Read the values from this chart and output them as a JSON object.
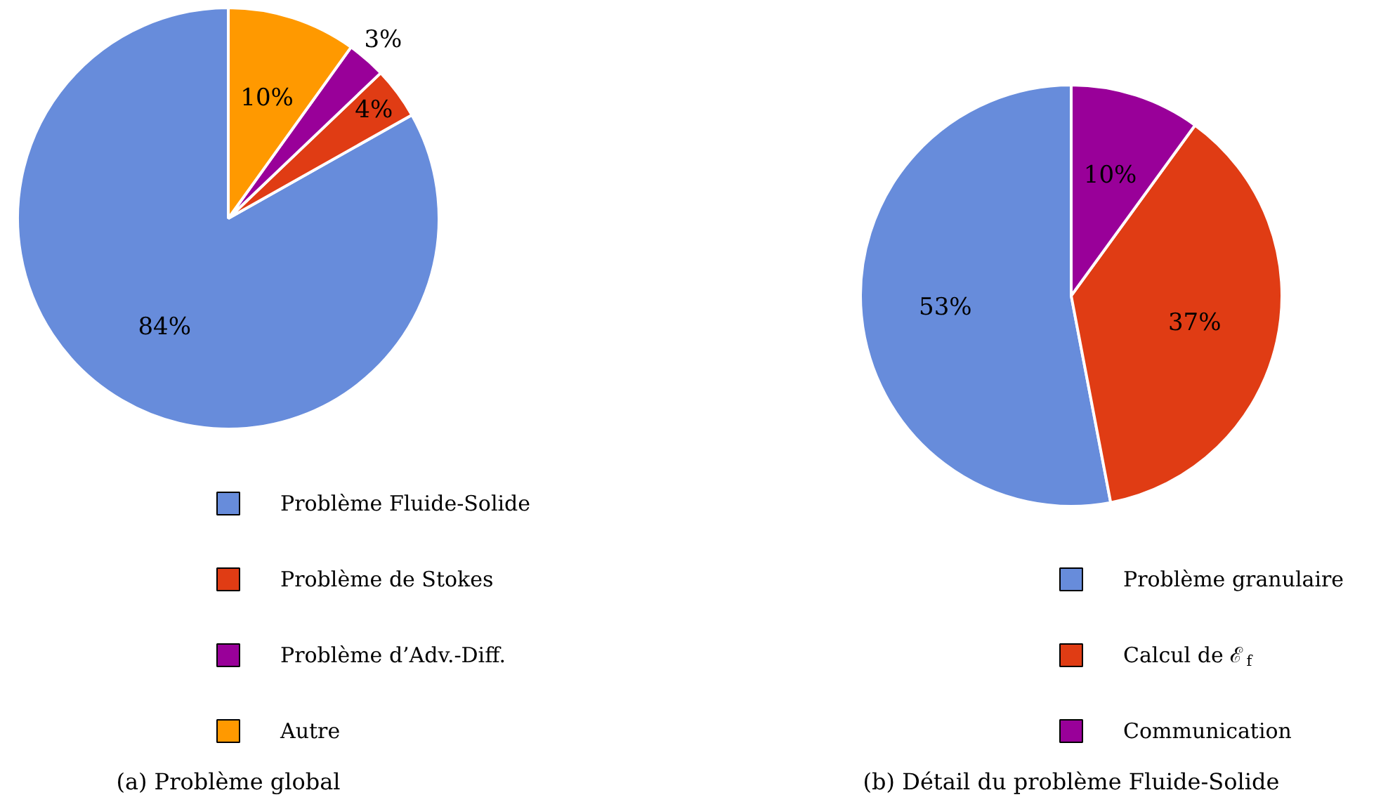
{
  "chart_data": [
    {
      "type": "pie",
      "title": "(a) Problème global",
      "categories": [
        "Problème Fluide-Solide",
        "Problème de Stokes",
        "Problème d’Adv.-Diff.",
        "Autre"
      ],
      "values": [
        84,
        4,
        3,
        10
      ],
      "colors": [
        "#678cdb",
        "#e03c14",
        "#990099",
        "#ff9900"
      ],
      "value_labels": [
        "84%",
        "4%",
        "3%",
        "10%"
      ],
      "legend": "bottom"
    },
    {
      "type": "pie",
      "title": "(b) Détail du problème Fluide-Solide",
      "categories": [
        "Problème granulaire",
        "Calcul de ℰ$_{f}$",
        "Communication"
      ],
      "values": [
        53,
        37,
        10
      ],
      "colors": [
        "#678cdb",
        "#e03c14",
        "#990099"
      ],
      "value_labels": [
        "53%",
        "37%",
        "10%"
      ],
      "legend": "bottom"
    }
  ]
}
